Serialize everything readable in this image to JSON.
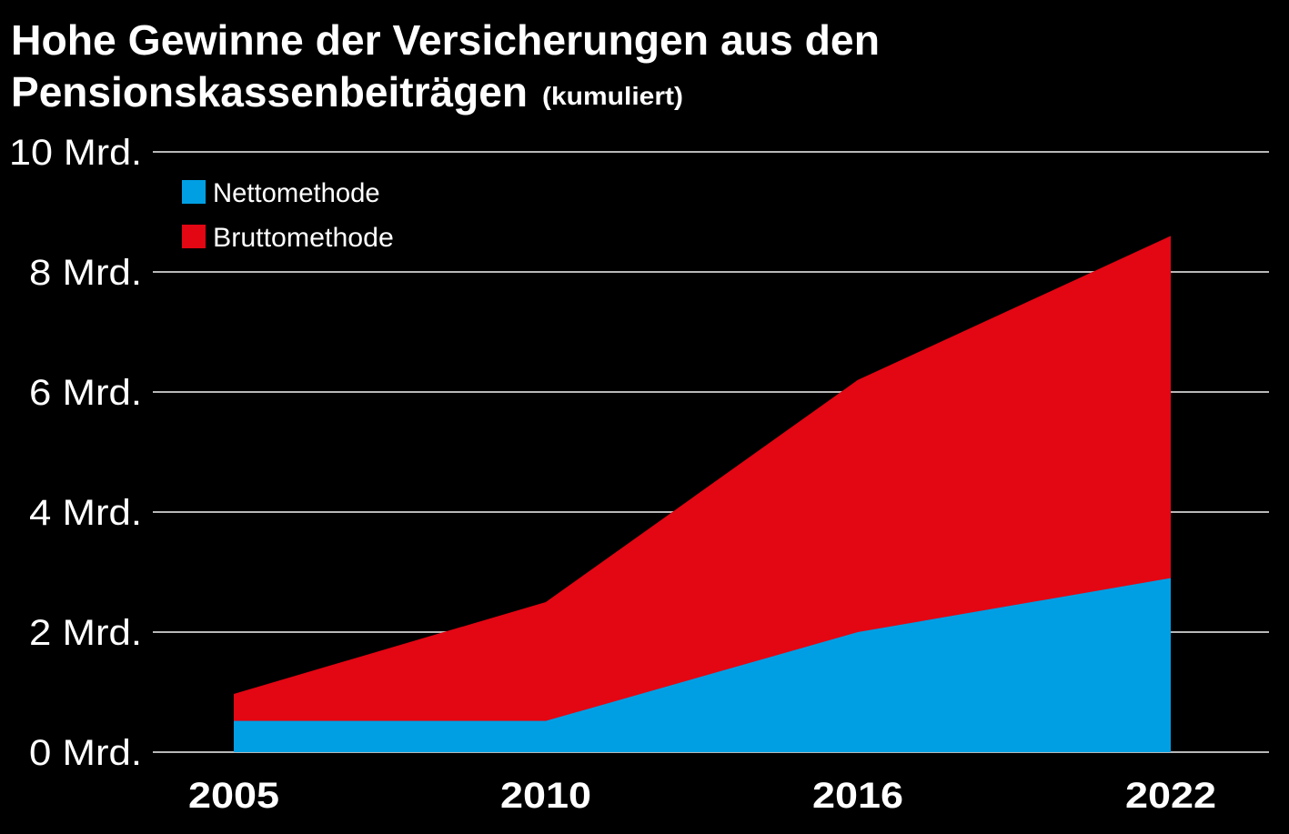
{
  "chart_data": {
    "type": "area",
    "title": "Hohe Gewinne der Versicherungen aus den",
    "title_line2": "Pensionskassenbeiträgen",
    "subtitle": "(kumuliert)",
    "categories": [
      "2005",
      "2010",
      "2016",
      "2022"
    ],
    "y_ticks": [
      "0 Mrd.",
      "2 Mrd.",
      "4 Mrd.",
      "6 Mrd.",
      "8 Mrd.",
      "10 Mrd."
    ],
    "ylim": [
      0,
      10
    ],
    "grid": true,
    "legend_position": "top-left",
    "series": [
      {
        "name": "Bruttomethode",
        "color": "#E30613",
        "values": [
          0.97,
          2.5,
          6.2,
          8.6
        ]
      },
      {
        "name": "Nettomethode",
        "color": "#009FE3",
        "values": [
          0.52,
          0.52,
          2.0,
          2.9
        ]
      }
    ],
    "legend": [
      {
        "name": "Nettomethode",
        "color": "#009FE3"
      },
      {
        "name": "Bruttomethode",
        "color": "#E30613"
      }
    ]
  }
}
